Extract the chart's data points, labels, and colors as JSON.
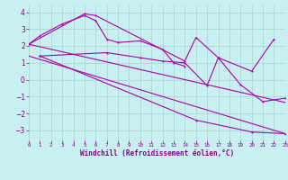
{
  "xlabel": "Windchill (Refroidissement éolien,°C)",
  "bg_color": "#c8f0f0",
  "grid_color": "#aad8d8",
  "line_color": "#aa00aa",
  "xmin": 0,
  "xmax": 23,
  "ymin": -3.6,
  "ymax": 4.4,
  "yticks": [
    -3,
    -2,
    -1,
    0,
    1,
    2,
    3,
    4
  ],
  "xticks": [
    0,
    1,
    2,
    3,
    4,
    5,
    6,
    7,
    8,
    9,
    10,
    11,
    12,
    13,
    14,
    15,
    16,
    17,
    18,
    19,
    20,
    21,
    22,
    23
  ],
  "s1x": [
    0,
    1,
    3,
    5,
    6,
    7,
    8,
    10,
    12,
    13,
    14
  ],
  "s1y": [
    2.1,
    2.6,
    3.3,
    3.8,
    3.5,
    2.4,
    2.2,
    2.3,
    1.8,
    1.0,
    0.8
  ],
  "s2x": [
    0,
    5,
    6,
    14,
    15,
    17,
    20,
    22
  ],
  "s2y": [
    2.1,
    3.9,
    3.8,
    1.1,
    2.5,
    1.3,
    0.5,
    2.4
  ],
  "s3x": [
    1,
    7,
    10,
    12,
    14,
    16,
    17,
    19,
    21,
    23
  ],
  "s3y": [
    1.4,
    1.6,
    1.3,
    1.1,
    1.0,
    -0.35,
    1.3,
    -0.3,
    -1.3,
    -1.1
  ],
  "s4x": [
    1,
    15,
    20,
    23
  ],
  "s4y": [
    1.4,
    -2.4,
    -3.1,
    -3.2
  ],
  "reg1x": [
    0,
    23
  ],
  "reg1y": [
    2.1,
    -1.35
  ],
  "reg2x": [
    0,
    23
  ],
  "reg2y": [
    1.4,
    -3.2
  ]
}
